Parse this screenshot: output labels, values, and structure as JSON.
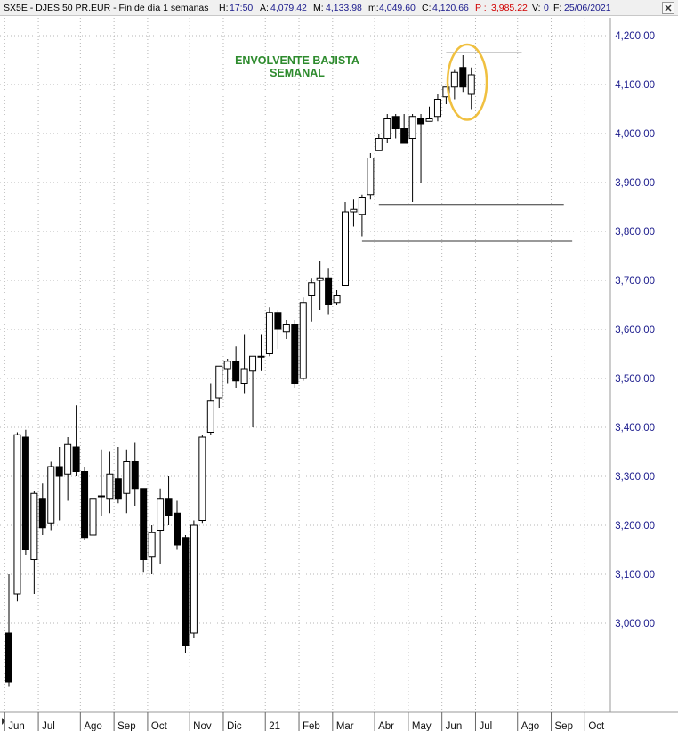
{
  "header": {
    "symbol": "SX5E - DJES 50 PR.EUR - Fin de día 1 semanas",
    "h_label": "H:",
    "h_value": "17:50",
    "a_label": "A:",
    "a_value": "4,079.42",
    "m_label": "M:",
    "m_value": "4,133.98",
    "min_label": "m:",
    "min_value": "4,049.60",
    "c_label": "C:",
    "c_value": "4,120.66",
    "p_label": "P :",
    "p_value": "3,985.22",
    "v_label": "V:",
    "v_value": "0",
    "f_label": "F:",
    "f_value": "25/06/2021",
    "close_icon": "close-icon"
  },
  "colors": {
    "bull_body": "#ffffff",
    "bear_body": "#000000",
    "highlight": "#f0c040",
    "annotation": "#2e8b2e",
    "axis_text": "#1a1a8c",
    "grid": "#b4b4b4",
    "label_red": "#d00000",
    "label_blue": "#1a1a8c"
  },
  "chart_data": {
    "type": "candlestick",
    "title": "",
    "xlabel": "",
    "ylabel": "",
    "ylim": [
      2900,
      4230
    ],
    "y_ticks": [
      3000,
      3100,
      3200,
      3300,
      3400,
      3500,
      3600,
      3700,
      3800,
      3900,
      4000,
      4100,
      4200
    ],
    "y_tick_labels": [
      "3,000.00",
      "3,100.00",
      "3,200.00",
      "3,300.00",
      "3,400.00",
      "3,500.00",
      "3,600.00",
      "3,700.00",
      "3,800.00",
      "3,900.00",
      "4,000.00",
      "4,100.00",
      "4,200.00"
    ],
    "x_month_labels": [
      "Jun",
      "Jul",
      "Ago",
      "Sep",
      "Oct",
      "Nov",
      "Dic",
      "21",
      "Feb",
      "Mar",
      "Abr",
      "May",
      "Jun",
      "Jul",
      "Ago",
      "Sep",
      "Oct"
    ],
    "x_month_boundaries_week_index": [
      0,
      4,
      9,
      13,
      17,
      22,
      26,
      31,
      35,
      39,
      44,
      48,
      52,
      56,
      61,
      65,
      69
    ],
    "grid": true,
    "week_start": "2020-05-29",
    "candles": [
      {
        "o": 2980,
        "h": 3100,
        "l": 2870,
        "c": 2880
      },
      {
        "o": 3060,
        "h": 3390,
        "l": 3045,
        "c": 3385
      },
      {
        "o": 3380,
        "h": 3395,
        "l": 3140,
        "c": 3150
      },
      {
        "o": 3130,
        "h": 3270,
        "l": 3060,
        "c": 3265
      },
      {
        "o": 3255,
        "h": 3285,
        "l": 3180,
        "c": 3195
      },
      {
        "o": 3205,
        "h": 3330,
        "l": 3190,
        "c": 3320
      },
      {
        "o": 3320,
        "h": 3360,
        "l": 3210,
        "c": 3300
      },
      {
        "o": 3305,
        "h": 3380,
        "l": 3250,
        "c": 3365
      },
      {
        "o": 3360,
        "h": 3445,
        "l": 3300,
        "c": 3310
      },
      {
        "o": 3310,
        "h": 3320,
        "l": 3170,
        "c": 3175
      },
      {
        "o": 3180,
        "h": 3285,
        "l": 3175,
        "c": 3255
      },
      {
        "o": 3260,
        "h": 3355,
        "l": 3220,
        "c": 3260
      },
      {
        "o": 3255,
        "h": 3350,
        "l": 3225,
        "c": 3305
      },
      {
        "o": 3295,
        "h": 3360,
        "l": 3245,
        "c": 3255
      },
      {
        "o": 3265,
        "h": 3355,
        "l": 3225,
        "c": 3330
      },
      {
        "o": 3330,
        "h": 3370,
        "l": 3240,
        "c": 3275
      },
      {
        "o": 3275,
        "h": 3275,
        "l": 3105,
        "c": 3130
      },
      {
        "o": 3135,
        "h": 3200,
        "l": 3100,
        "c": 3185
      },
      {
        "o": 3190,
        "h": 3275,
        "l": 3120,
        "c": 3255
      },
      {
        "o": 3255,
        "h": 3300,
        "l": 3200,
        "c": 3220
      },
      {
        "o": 3225,
        "h": 3250,
        "l": 3150,
        "c": 3160
      },
      {
        "o": 3175,
        "h": 3180,
        "l": 2940,
        "c": 2955
      },
      {
        "o": 2980,
        "h": 3210,
        "l": 2970,
        "c": 3200
      },
      {
        "o": 3210,
        "h": 3385,
        "l": 3205,
        "c": 3380
      },
      {
        "o": 3390,
        "h": 3490,
        "l": 3385,
        "c": 3455
      },
      {
        "o": 3460,
        "h": 3525,
        "l": 3440,
        "c": 3525
      },
      {
        "o": 3520,
        "h": 3540,
        "l": 3490,
        "c": 3535
      },
      {
        "o": 3535,
        "h": 3565,
        "l": 3480,
        "c": 3495
      },
      {
        "o": 3490,
        "h": 3590,
        "l": 3470,
        "c": 3520
      },
      {
        "o": 3515,
        "h": 3545,
        "l": 3400,
        "c": 3545
      },
      {
        "o": 3545,
        "h": 3590,
        "l": 3515,
        "c": 3545
      },
      {
        "o": 3550,
        "h": 3645,
        "l": 3545,
        "c": 3635
      },
      {
        "o": 3635,
        "h": 3640,
        "l": 3560,
        "c": 3600
      },
      {
        "o": 3595,
        "h": 3620,
        "l": 3580,
        "c": 3610
      },
      {
        "o": 3610,
        "h": 3620,
        "l": 3480,
        "c": 3490
      },
      {
        "o": 3500,
        "h": 3665,
        "l": 3495,
        "c": 3655
      },
      {
        "o": 3670,
        "h": 3705,
        "l": 3615,
        "c": 3695
      },
      {
        "o": 3700,
        "h": 3740,
        "l": 3640,
        "c": 3705
      },
      {
        "o": 3705,
        "h": 3725,
        "l": 3630,
        "c": 3650
      },
      {
        "o": 3655,
        "h": 3680,
        "l": 3650,
        "c": 3670
      },
      {
        "o": 3690,
        "h": 3860,
        "l": 3690,
        "c": 3840
      },
      {
        "o": 3840,
        "h": 3865,
        "l": 3810,
        "c": 3845
      },
      {
        "o": 3835,
        "h": 3875,
        "l": 3790,
        "c": 3870
      },
      {
        "o": 3875,
        "h": 3960,
        "l": 3865,
        "c": 3950
      },
      {
        "o": 3965,
        "h": 4000,
        "l": 3965,
        "c": 3990
      },
      {
        "o": 3990,
        "h": 4040,
        "l": 3980,
        "c": 4030
      },
      {
        "o": 4035,
        "h": 4040,
        "l": 3990,
        "c": 4010
      },
      {
        "o": 4010,
        "h": 4040,
        "l": 3985,
        "c": 3980
      },
      {
        "o": 3990,
        "h": 4040,
        "l": 3860,
        "c": 4035
      },
      {
        "o": 4030,
        "h": 4040,
        "l": 3900,
        "c": 4020
      },
      {
        "o": 4025,
        "h": 4055,
        "l": 4025,
        "c": 4030
      },
      {
        "o": 4035,
        "h": 4080,
        "l": 4025,
        "c": 4070
      },
      {
        "o": 4075,
        "h": 4095,
        "l": 4060,
        "c": 4095
      },
      {
        "o": 4095,
        "h": 4130,
        "l": 4070,
        "c": 4125
      },
      {
        "o": 4135,
        "h": 4160,
        "l": 4085,
        "c": 4095
      },
      {
        "o": 4080,
        "h": 4135,
        "l": 4050,
        "c": 4120
      }
    ],
    "horizontal_lines": [
      {
        "y": 4165,
        "x_start_week": 52,
        "x_end_week": 61
      },
      {
        "y": 3855,
        "x_start_week": 44,
        "x_end_week": 66
      },
      {
        "y": 3780,
        "x_start_week": 42,
        "x_end_week": 67
      }
    ],
    "highlight_weeks": [
      54,
      55
    ],
    "annotation": {
      "line1": "ENVOLVENTE BAJISTA",
      "line2": "SEMANAL"
    }
  }
}
